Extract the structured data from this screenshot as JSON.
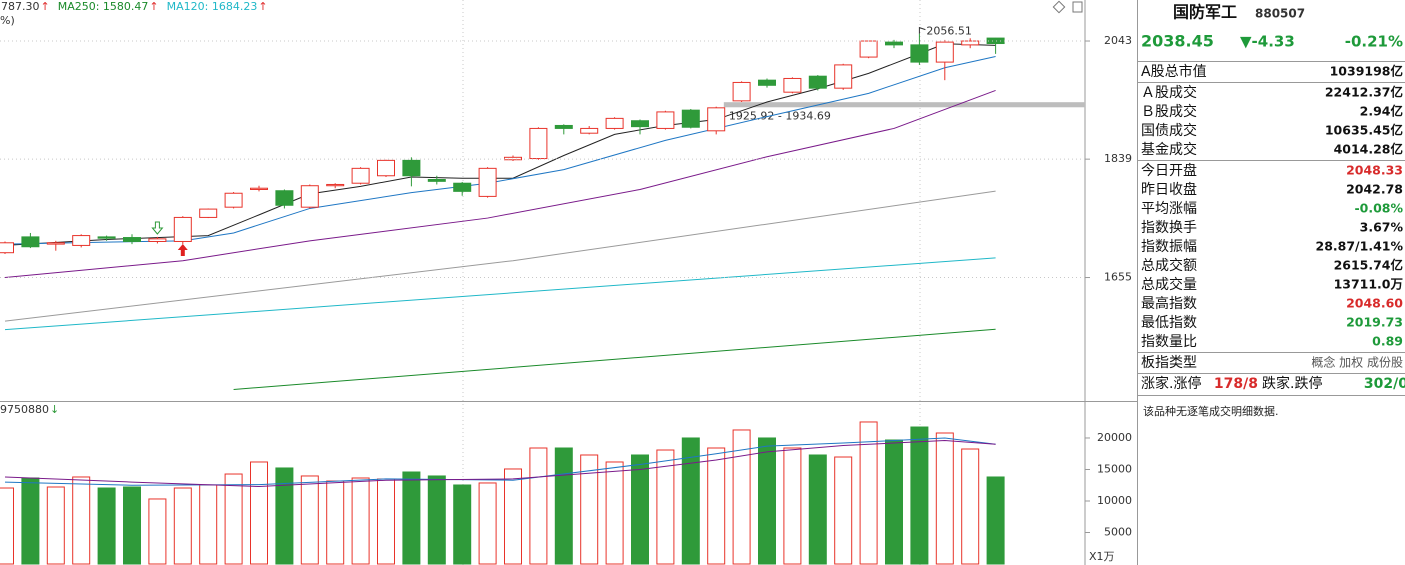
{
  "chart_data": [
    {
      "type": "candlestick",
      "header": [
        {
          "text": "787.30",
          "color": "#333333"
        },
        {
          "text": "MA250: 1580.47",
          "color": "#1a8a2a"
        },
        {
          "text": "MA120: 1684.23",
          "color": "#20b8c8"
        }
      ],
      "header_arrow": "↑",
      "header_arrow_color": "#e03030",
      "header_sub": "%)",
      "log_scale": true,
      "ylim": [
        1484,
        2119
      ],
      "yticks": [
        1655,
        1839,
        2043
      ],
      "grid": true,
      "up_color": "#e8332a",
      "down_color": "#2f9a3a",
      "open": [
        1692,
        1716,
        1705,
        1703,
        1716,
        1715,
        1709,
        1709,
        1746,
        1762,
        1790,
        1788,
        1762,
        1796,
        1800,
        1812,
        1837,
        1806,
        1800,
        1779,
        1838,
        1840,
        1895,
        1882,
        1890,
        1903,
        1890,
        1921,
        1886,
        1937,
        1973,
        1952,
        1980,
        1959,
        2014,
        2041,
        2036,
        2005,
        2036,
        2048.33
      ],
      "high": [
        1709,
        1722,
        1710,
        1720,
        1718,
        1720,
        1716,
        1748,
        1760,
        1786,
        1796,
        1790,
        1798,
        1800,
        1826,
        1838,
        1842,
        1812,
        1802,
        1826,
        1845,
        1892,
        1897,
        1894,
        1909,
        1905,
        1920,
        1923,
        1927,
        1971,
        1976,
        1978,
        1982,
        2002,
        2044,
        2045,
        2056.51,
        2045,
        2048,
        2048.6
      ],
      "low": [
        1690,
        1699,
        1695,
        1700,
        1710,
        1705,
        1706,
        1705,
        1745,
        1760,
        1787,
        1760,
        1760,
        1792,
        1798,
        1810,
        1795,
        1798,
        1780,
        1777,
        1836,
        1838,
        1880,
        1880,
        1888,
        1880,
        1888,
        1890,
        1880,
        1935,
        1960,
        1950,
        1955,
        1956,
        2012,
        2030,
        2000,
        1973,
        2030,
        2019.73
      ],
      "close": [
        1707,
        1701,
        1707,
        1718,
        1714,
        1709,
        1713,
        1746,
        1759,
        1784,
        1792,
        1765,
        1796,
        1798,
        1824,
        1837,
        1812,
        1803,
        1787,
        1824,
        1842,
        1890,
        1890,
        1890,
        1907,
        1893,
        1918,
        1892,
        1925,
        1969,
        1964,
        1976,
        1959,
        2000,
        2043,
        2036,
        2005,
        2041,
        2043,
        2038.45
      ],
      "lines": [
        {
          "color": "#222222",
          "x": [
            0,
            4,
            8,
            10,
            12,
            14,
            16,
            18,
            20,
            22,
            24,
            26,
            28,
            30,
            32,
            34,
            36,
            37,
            39
          ],
          "values": [
            1703,
            1712,
            1718,
            1750,
            1783,
            1795,
            1810,
            1808,
            1808,
            1845,
            1880,
            1895,
            1905,
            1935,
            1958,
            1985,
            2020,
            2038,
            2035
          ]
        },
        {
          "color": "#1f77c4",
          "x": [
            0,
            4,
            7,
            9,
            12,
            16,
            19,
            22,
            26,
            30,
            34,
            37,
            39
          ],
          "values": [
            1705,
            1708,
            1710,
            1722,
            1760,
            1785,
            1800,
            1822,
            1870,
            1910,
            1950,
            1995,
            2015
          ]
        },
        {
          "color": "#7a1a8a",
          "x": [
            0,
            7,
            12,
            19,
            25,
            30,
            35,
            39
          ],
          "values": [
            1655,
            1680,
            1710,
            1745,
            1790,
            1843,
            1890,
            1955
          ]
        },
        {
          "color": "#9a9a9a",
          "x": [
            0,
            20,
            39
          ],
          "values": [
            1592,
            1680,
            1787.3
          ]
        },
        {
          "color": "#20b8c8",
          "x": [
            0,
            39
          ],
          "values": [
            1580,
            1684.23
          ]
        },
        {
          "color": "#1a8a2a",
          "x": [
            9,
            39
          ],
          "values": [
            1498,
            1580.47
          ]
        }
      ],
      "band": {
        "label": "1925.92 - 1934.69",
        "low": 1925.92,
        "high": 1934.69
      }
    },
    {
      "type": "bar",
      "header": "9750880",
      "header_arrow": "↓",
      "unit_label": "X1万",
      "ylim": [
        0,
        25710
      ],
      "yticks": [
        5000,
        10000,
        15000,
        20000
      ],
      "values": [
        12060,
        13650,
        12220,
        13810,
        12060,
        12220,
        10320,
        12060,
        12540,
        14280,
        16190,
        15240,
        13970,
        13170,
        13650,
        13490,
        14600,
        13970,
        12540,
        12860,
        15080,
        18410,
        18410,
        17300,
        16190,
        17300,
        18090,
        20000,
        18410,
        21270,
        20000,
        18410,
        17300,
        16980,
        22540,
        19680,
        21740,
        20790,
        18250,
        13810
      ],
      "lines": [
        {
          "color": "#1f77c4",
          "x": [
            0,
            5,
            10,
            15,
            20,
            25,
            28,
            30,
            33,
            35,
            37,
            39
          ],
          "values": [
            13000,
            12500,
            12600,
            13500,
            13300,
            15800,
            17500,
            18700,
            19200,
            19600,
            20000,
            19000
          ]
        },
        {
          "color": "#7a1a8a",
          "x": [
            0,
            5,
            10,
            15,
            20,
            25,
            28,
            30,
            33,
            35,
            37,
            39
          ],
          "values": [
            13800,
            13000,
            12300,
            13300,
            13500,
            15000,
            16500,
            17800,
            18800,
            19200,
            19600,
            19000
          ]
        }
      ]
    }
  ],
  "quote_panel": {
    "name": "国防军工",
    "code": "880507",
    "price": "2038.45",
    "change": "▼-4.33",
    "change_pct": "-0.21%",
    "quote_color": "#1e9a3a",
    "groups": [
      [
        {
          "label": "A股总市值",
          "value": "1039198亿"
        }
      ],
      [
        {
          "label": "Ａ股成交",
          "value": "22412.37亿"
        },
        {
          "label": "Ｂ股成交",
          "value": "2.94亿"
        },
        {
          "label": "国债成交",
          "value": "10635.45亿"
        },
        {
          "label": "基金成交",
          "value": "4014.28亿"
        }
      ],
      [
        {
          "label": "今日开盘",
          "value": "2048.33",
          "color": "#d82b2b"
        },
        {
          "label": "昨日收盘",
          "value": "2042.78"
        },
        {
          "label": "平均涨幅",
          "value": "-0.08%",
          "color": "#1e9a3a"
        },
        {
          "label": "指数换手",
          "value": "3.67%"
        },
        {
          "label": "指数振幅",
          "value": "28.87/1.41%"
        },
        {
          "label": "总成交额",
          "value": "2615.74亿"
        },
        {
          "label": "总成交量",
          "value": "13711.0万"
        },
        {
          "label": "最高指数",
          "value": "2048.60",
          "color": "#d82b2b"
        },
        {
          "label": "最低指数",
          "value": "2019.73",
          "color": "#1e9a3a"
        },
        {
          "label": "指数量比",
          "value": "0.89",
          "color": "#1e9a3a"
        }
      ],
      [
        {
          "label": "板指类型",
          "value": "概念 加权 成份股",
          "color": "#555555"
        }
      ]
    ],
    "breadth": [
      {
        "text": "涨家.涨停"
      },
      {
        "text": "178/8",
        "color": "#d82b2b"
      },
      {
        "text": "跌家.跌停"
      },
      {
        "text": "302/0",
        "color": "#1e9a3a"
      }
    ],
    "note": "该品种无逐笔成交明细数据."
  }
}
